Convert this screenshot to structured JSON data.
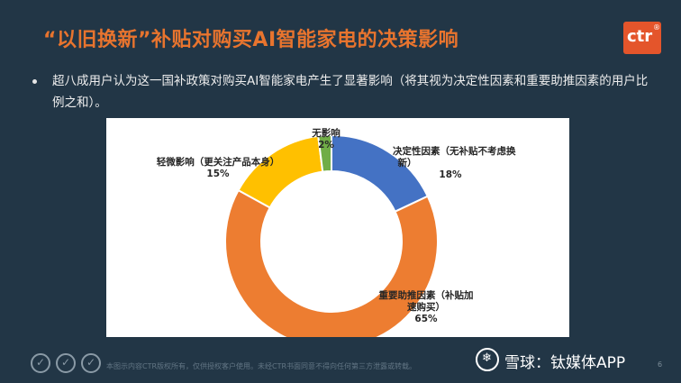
{
  "header": {
    "title": "“以旧换新”补贴对购买AI智能家电的决策影响"
  },
  "logo": {
    "text": "ctr",
    "mark": "®"
  },
  "bullet": {
    "text": "超八成用户认为这一国补政策对购买AI智能家电产生了显著影响（将其视为决定性因素和重要助推因素的用户比例之和）。"
  },
  "chart_data": {
    "type": "pie",
    "variant": "donut",
    "slices": [
      {
        "label": "决定性因素（无补贴不考虑换新）",
        "label_lines": [
          "决定性因素（无补贴不考虑换",
          "新）"
        ],
        "value": 18,
        "value_label": "18%",
        "color": "#4472c4"
      },
      {
        "label": "重要助推因素（补贴加速购买）",
        "label_lines": [
          "重要助推因素（补贴加",
          "速购买）"
        ],
        "value": 65,
        "value_label": "65%",
        "color": "#ed7d31"
      },
      {
        "label": "轻微影响（更关注产品本身）",
        "label_lines": [
          "轻微影响（更关注产品本身）"
        ],
        "value": 15,
        "value_label": "15%",
        "color": "#ffc000"
      },
      {
        "label": "无影响",
        "label_lines": [
          "无影响"
        ],
        "value": 2,
        "value_label": "2%",
        "color": "#70ad47"
      }
    ],
    "start_angle": "12 o'clock",
    "direction": "clockwise",
    "legend": "none",
    "title": ""
  },
  "footer": {
    "icons": [
      "copyright-icon",
      "copyright-icon",
      "copyright-icon"
    ],
    "note": "本图示内容CTR版权所有，仅供授权客户使用。未经CTR书面同意不得向任何第三方泄露或转载。",
    "page": "6"
  },
  "watermark": {
    "text": "雪球：钛媒体APP",
    "icon": "snowball-icon"
  }
}
